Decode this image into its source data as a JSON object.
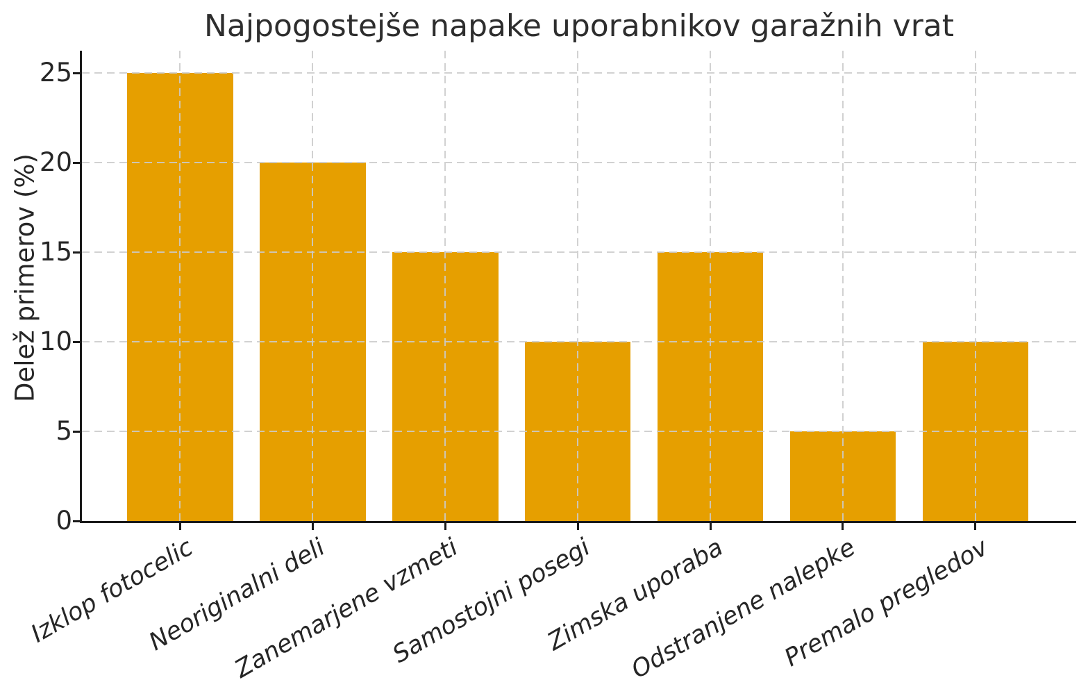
{
  "chart_data": {
    "type": "bar",
    "title": "Najpogostejše napake uporabnikov garažnih vrat",
    "xlabel": "",
    "ylabel": "Delež primerov (%)",
    "categories": [
      "Izklop fotocelic",
      "Neoriginalni deli",
      "Zanemarjene vzmeti",
      "Samostojni posegi",
      "Zimska uporaba",
      "Odstranjene nalepke",
      "Premalo pregledov"
    ],
    "values": [
      25,
      20,
      15,
      10,
      15,
      5,
      10
    ],
    "yticks": [
      0,
      5,
      10,
      15,
      20,
      25
    ],
    "ylim": [
      0,
      26.25
    ],
    "grid": "dashed both axes, drawn over bars",
    "legend": "none",
    "bar_color": "#E69F00",
    "spine_color": "#1a1a1a",
    "grid_color": "#cbcbcb",
    "text_color": "#262626"
  }
}
